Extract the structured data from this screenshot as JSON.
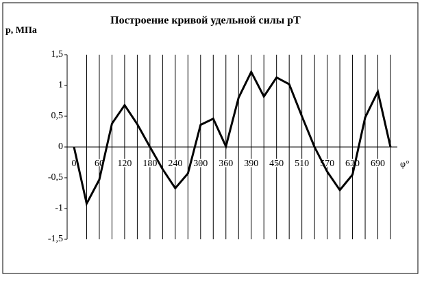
{
  "chart_data": {
    "type": "line",
    "title": "Построение кривой удельной силы pT",
    "y_label": "p, МПа",
    "x_label": "φ°",
    "categories": [
      "0",
      null,
      "60",
      null,
      "120",
      null,
      "180",
      null,
      "240",
      null,
      "300",
      null,
      "360",
      null,
      "390",
      null,
      "450",
      null,
      "510",
      null,
      "570",
      null,
      "630",
      null,
      "690",
      null
    ],
    "series": [
      {
        "name": "pT",
        "color": "#000000",
        "values": [
          0,
          -0.92,
          -0.53,
          0.38,
          0.68,
          0.37,
          0,
          -0.36,
          -0.67,
          -0.43,
          0.36,
          0.46,
          0.01,
          0.8,
          1.22,
          0.82,
          1.13,
          1.02,
          0.5,
          0,
          -0.4,
          -0.7,
          -0.45,
          0.48,
          0.9,
          0
        ]
      }
    ],
    "ylim": [
      -1.5,
      1.5
    ],
    "yticks": [
      {
        "value": -1.5,
        "label": "-1,5"
      },
      -1,
      {
        "value": -0.5,
        "label": "-0,5"
      },
      0,
      {
        "value": 0.5,
        "label": "0,5"
      },
      1,
      {
        "value": 1.5,
        "label": "1,5"
      }
    ],
    "grid": true
  }
}
